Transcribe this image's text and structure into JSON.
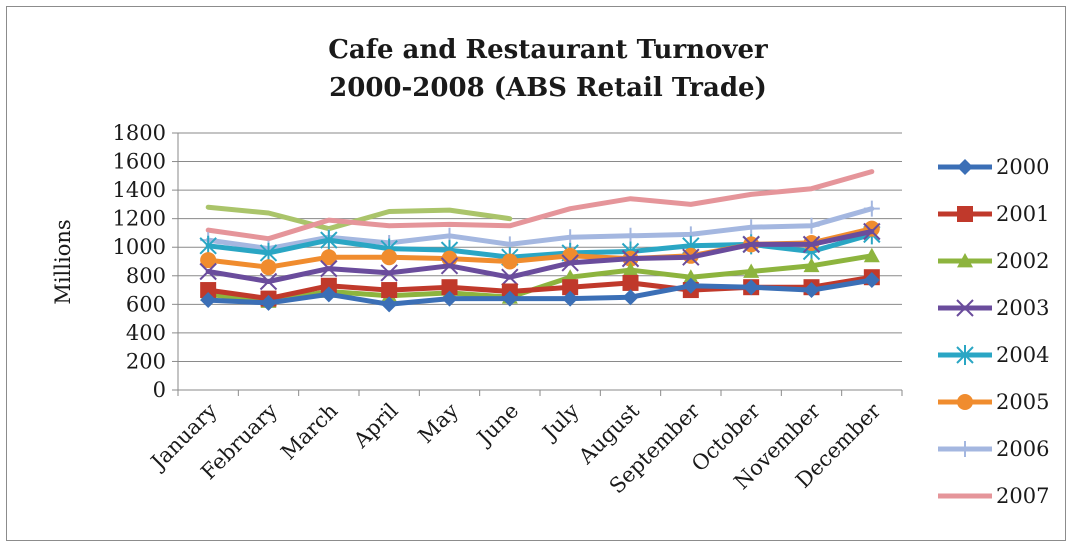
{
  "chart_data": {
    "type": "line",
    "title_line1": "Cafe and Restaurant Turnover",
    "title_line2": "2000-2008 (ABS Retail Trade)",
    "ylabel": "Millions",
    "ylim": [
      0,
      1800
    ],
    "yticks": [
      0,
      200,
      400,
      600,
      800,
      1000,
      1200,
      1400,
      1600,
      1800
    ],
    "grid": true,
    "legend_position": "right",
    "categories": [
      "January",
      "February",
      "March",
      "April",
      "May",
      "June",
      "July",
      "August",
      "September",
      "October",
      "November",
      "December"
    ],
    "series": [
      {
        "name": "2000",
        "color": "#3b6fb6",
        "marker": "diamond",
        "values": [
          630,
          610,
          670,
          600,
          640,
          640,
          640,
          650,
          730,
          720,
          700,
          770
        ]
      },
      {
        "name": "2001",
        "color": "#c0392b",
        "marker": "square",
        "values": [
          700,
          640,
          730,
          700,
          720,
          690,
          720,
          750,
          700,
          720,
          720,
          790
        ]
      },
      {
        "name": "2002",
        "color": "#8db43e",
        "marker": "triangle",
        "values": [
          670,
          620,
          690,
          660,
          680,
          650,
          790,
          840,
          790,
          830,
          870,
          940
        ]
      },
      {
        "name": "2003",
        "color": "#6a4c9c",
        "marker": "x",
        "values": [
          830,
          760,
          850,
          820,
          870,
          790,
          890,
          920,
          930,
          1020,
          1020,
          1110
        ]
      },
      {
        "name": "2004",
        "color": "#2aa6c4",
        "marker": "star",
        "values": [
          1010,
          960,
          1050,
          990,
          980,
          930,
          960,
          970,
          1010,
          1020,
          970,
          1090
        ]
      },
      {
        "name": "2005",
        "color": "#f08c2e",
        "marker": "circle",
        "values": [
          910,
          860,
          930,
          930,
          920,
          900,
          940,
          920,
          940,
          1020,
          1030,
          1130
        ]
      },
      {
        "name": "2006",
        "color": "#a4b7e0",
        "marker": "plus",
        "values": [
          1050,
          990,
          1070,
          1030,
          1080,
          1020,
          1070,
          1080,
          1090,
          1140,
          1150,
          1270
        ]
      },
      {
        "name": "2007",
        "color": "#e5959a",
        "marker": "none",
        "values": [
          1120,
          1060,
          1190,
          1150,
          1160,
          1150,
          1270,
          1340,
          1300,
          1370,
          1410,
          1530
        ]
      },
      {
        "name": "",
        "color": "#aac46a",
        "marker": "none",
        "in_legend": false,
        "values": [
          1280,
          1240,
          1130,
          1250,
          1260,
          1200,
          null,
          null,
          null,
          null,
          null,
          null
        ]
      }
    ]
  }
}
